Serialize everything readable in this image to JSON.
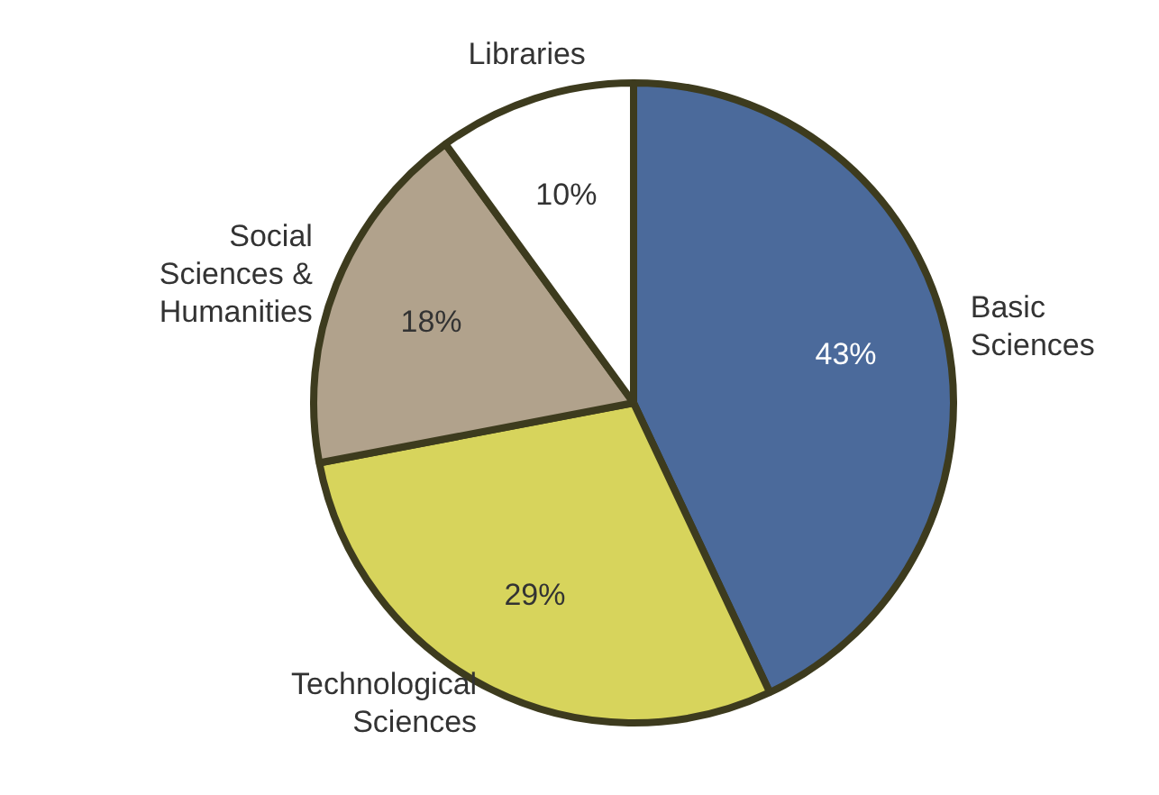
{
  "chart_data": {
    "type": "pie",
    "categories": [
      "Basic Sciences",
      "Technological Sciences",
      "Social Sciences & Humanities",
      "Libraries"
    ],
    "values": [
      43,
      29,
      18,
      10
    ],
    "value_labels": [
      "43%",
      "29%",
      "18%",
      "10%"
    ],
    "colors": [
      "#4b6a9b",
      "#d7d45c",
      "#b1a28c",
      "#ffffff"
    ],
    "legend": false
  }
}
